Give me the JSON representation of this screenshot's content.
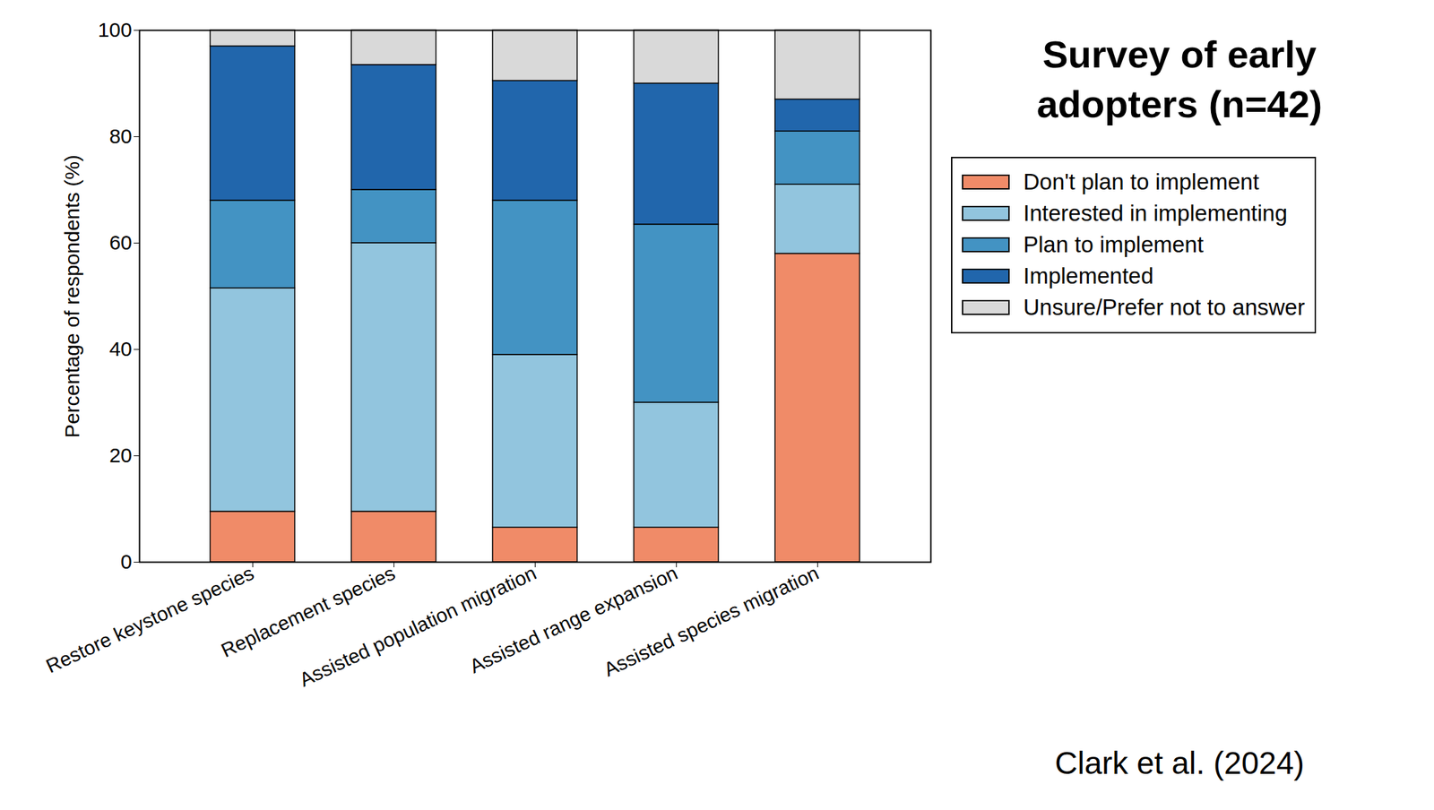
{
  "chart_data": {
    "type": "bar",
    "title": "Survey of early adopters (n=42)",
    "caption": "Clark et al. (2024)",
    "y_label": "Percentage of respondents (%)",
    "categories": [
      "Restore keystone species",
      "Replacement species",
      "Assisted population migration",
      "Assisted range expansion",
      "Assisted species migration"
    ],
    "series": [
      {
        "name": "Don't plan to implement",
        "color": "#f08b68",
        "values": [
          9.5,
          9.5,
          6.5,
          6.5,
          58
        ]
      },
      {
        "name": "Interested in implementing",
        "color": "#92c5de",
        "values": [
          42,
          50.5,
          32.5,
          23.5,
          13
        ]
      },
      {
        "name": "Plan to implement",
        "color": "#4393c3",
        "values": [
          16.5,
          10,
          29,
          33.5,
          10
        ]
      },
      {
        "name": "Implemented",
        "color": "#2166ac",
        "values": [
          29,
          23.5,
          22.5,
          26.5,
          6
        ]
      },
      {
        "name": "Unsure/Prefer not to answer",
        "color": "#d9d9d9",
        "values": [
          3,
          6.5,
          9.5,
          10,
          13
        ]
      }
    ],
    "stacked": true,
    "ylim": [
      0,
      100
    ],
    "yticks": [
      0,
      20,
      40,
      60,
      80,
      100
    ],
    "grid": false,
    "legend": "right"
  }
}
